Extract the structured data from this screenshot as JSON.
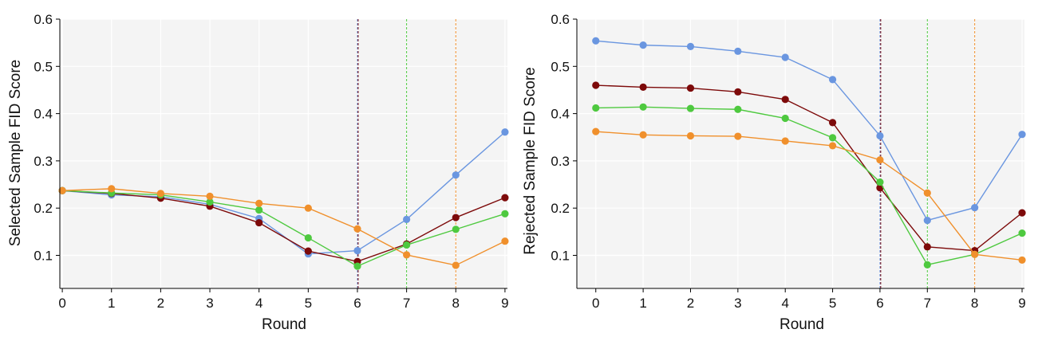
{
  "chart_data": [
    {
      "type": "line",
      "title": "",
      "xlabel": "Round",
      "ylabel": "Selected Sample FID Score",
      "x": [
        0,
        1,
        2,
        3,
        4,
        5,
        6,
        7,
        8,
        9
      ],
      "xlim": [
        -0.05,
        9.05
      ],
      "ylim": [
        0.03,
        0.6
      ],
      "yticks": [
        0.1,
        0.2,
        0.3,
        0.4,
        0.5,
        0.6
      ],
      "yticklabels": [
        "0.1",
        "0.2",
        "0.3",
        "0.4",
        "0.5",
        "0.6"
      ],
      "grid": true,
      "series": [
        {
          "name": "blue",
          "color": "#6a96e0",
          "values": [
            0.237,
            0.228,
            0.224,
            0.208,
            0.178,
            0.103,
            0.11,
            0.176,
            0.27,
            0.361
          ]
        },
        {
          "name": "dark red",
          "color": "#7d0a0a",
          "values": [
            0.237,
            0.231,
            0.221,
            0.204,
            0.169,
            0.109,
            0.087,
            0.124,
            0.18,
            0.222
          ]
        },
        {
          "name": "green",
          "color": "#4ec93f",
          "values": [
            0.237,
            0.232,
            0.228,
            0.213,
            0.196,
            0.137,
            0.077,
            0.122,
            0.155,
            0.188
          ]
        },
        {
          "name": "orange",
          "color": "#f0902c",
          "values": [
            0.237,
            0.241,
            0.231,
            0.225,
            0.21,
            0.2,
            0.156,
            0.101,
            0.079,
            0.13
          ]
        }
      ],
      "vlines": [
        {
          "x": 6,
          "color": "#6a96e0"
        },
        {
          "x": 6,
          "color": "#7d0a0a"
        },
        {
          "x": 7,
          "color": "#4ec93f"
        },
        {
          "x": 8,
          "color": "#f0902c"
        }
      ]
    },
    {
      "type": "line",
      "title": "",
      "xlabel": "Round",
      "ylabel": "Rejected Sample FID Score",
      "x": [
        0,
        1,
        2,
        3,
        4,
        5,
        6,
        7,
        8,
        9
      ],
      "xlim": [
        -0.4,
        9.05
      ],
      "ylim": [
        0.03,
        0.6
      ],
      "yticks": [
        0.1,
        0.2,
        0.3,
        0.4,
        0.5,
        0.6
      ],
      "yticklabels": [
        "0.1",
        "0.2",
        "0.3",
        "0.4",
        "0.5",
        "0.6"
      ],
      "grid": true,
      "series": [
        {
          "name": "blue",
          "color": "#6a96e0",
          "values": [
            0.554,
            0.545,
            0.542,
            0.532,
            0.519,
            0.472,
            0.353,
            0.174,
            0.201,
            0.356
          ]
        },
        {
          "name": "dark red",
          "color": "#7d0a0a",
          "values": [
            0.46,
            0.456,
            0.454,
            0.446,
            0.43,
            0.381,
            0.243,
            0.118,
            0.11,
            0.19
          ]
        },
        {
          "name": "green",
          "color": "#4ec93f",
          "values": [
            0.412,
            0.414,
            0.411,
            0.409,
            0.39,
            0.349,
            0.255,
            0.08,
            0.102,
            0.147
          ]
        },
        {
          "name": "orange",
          "color": "#f0902c",
          "values": [
            0.362,
            0.355,
            0.353,
            0.352,
            0.342,
            0.332,
            0.302,
            0.232,
            0.102,
            0.09
          ]
        }
      ],
      "vlines": [
        {
          "x": 6,
          "color": "#6a96e0"
        },
        {
          "x": 6,
          "color": "#7d0a0a"
        },
        {
          "x": 7,
          "color": "#4ec93f"
        },
        {
          "x": 8,
          "color": "#f0902c"
        }
      ]
    }
  ]
}
